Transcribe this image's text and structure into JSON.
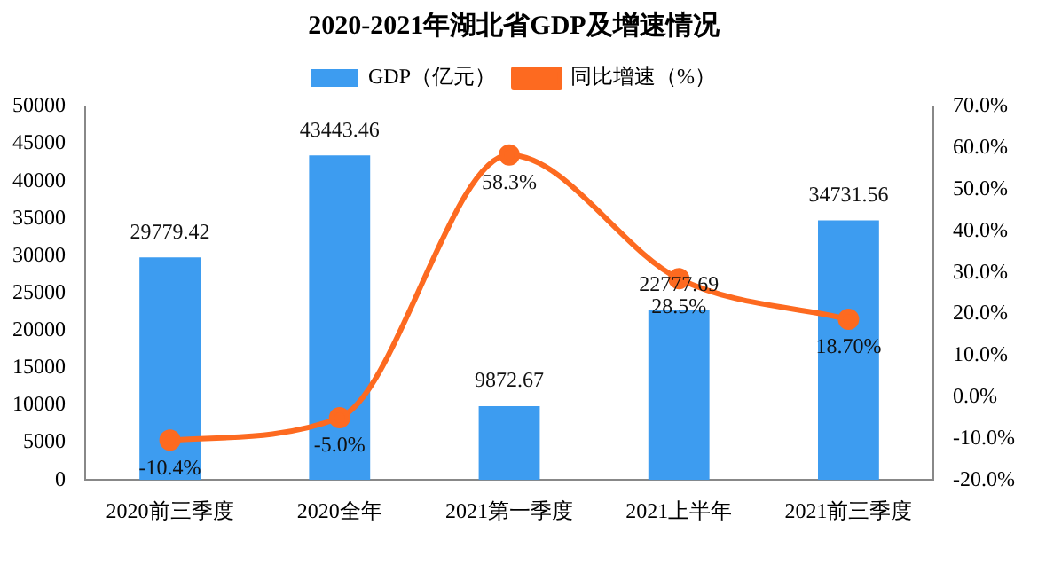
{
  "chart_data": {
    "type": "bar",
    "title": "2020-2021年湖北省GDP及增速情况",
    "categories": [
      "2020前三季度",
      "2020全年",
      "2021第一季度",
      "2021上半年",
      "2021前三季度"
    ],
    "series": [
      {
        "name": "GDP（亿元）",
        "color": "#3d9cf0",
        "values": [
          29779.42,
          43443.46,
          9872.67,
          22777.69,
          34731.56
        ],
        "value_labels": [
          "29779.42",
          "43443.46",
          "9872.67",
          "22777.69",
          "34731.56"
        ]
      },
      {
        "name": "同比增速（%）",
        "type": "line",
        "axis": "y2",
        "color": "#fd6a20",
        "values": [
          -10.4,
          -5.0,
          58.3,
          28.5,
          18.7
        ],
        "value_labels": [
          "-10.4%",
          "-5.0%",
          "58.3%",
          "28.5%",
          "18.70%"
        ]
      }
    ],
    "ylim": [
      0,
      50000
    ],
    "yticks": [
      0,
      5000,
      10000,
      15000,
      20000,
      25000,
      30000,
      35000,
      40000,
      45000,
      50000
    ],
    "y2lim": [
      -20,
      70
    ],
    "y2ticks": [
      {
        "value": -20,
        "label": "-20.0%"
      },
      {
        "value": -10,
        "label": "-10.0%"
      },
      {
        "value": 0,
        "label": "0.0%"
      },
      {
        "value": 10,
        "label": "10.0%"
      },
      {
        "value": 20,
        "label": "20.0%"
      },
      {
        "value": 30,
        "label": "30.0%"
      },
      {
        "value": 40,
        "label": "40.0%"
      },
      {
        "value": 50,
        "label": "50.0%"
      },
      {
        "value": 60,
        "label": "60.0%"
      },
      {
        "value": 70,
        "label": "70.0%"
      }
    ],
    "grid": false,
    "legend": "top",
    "marker": "circle"
  }
}
